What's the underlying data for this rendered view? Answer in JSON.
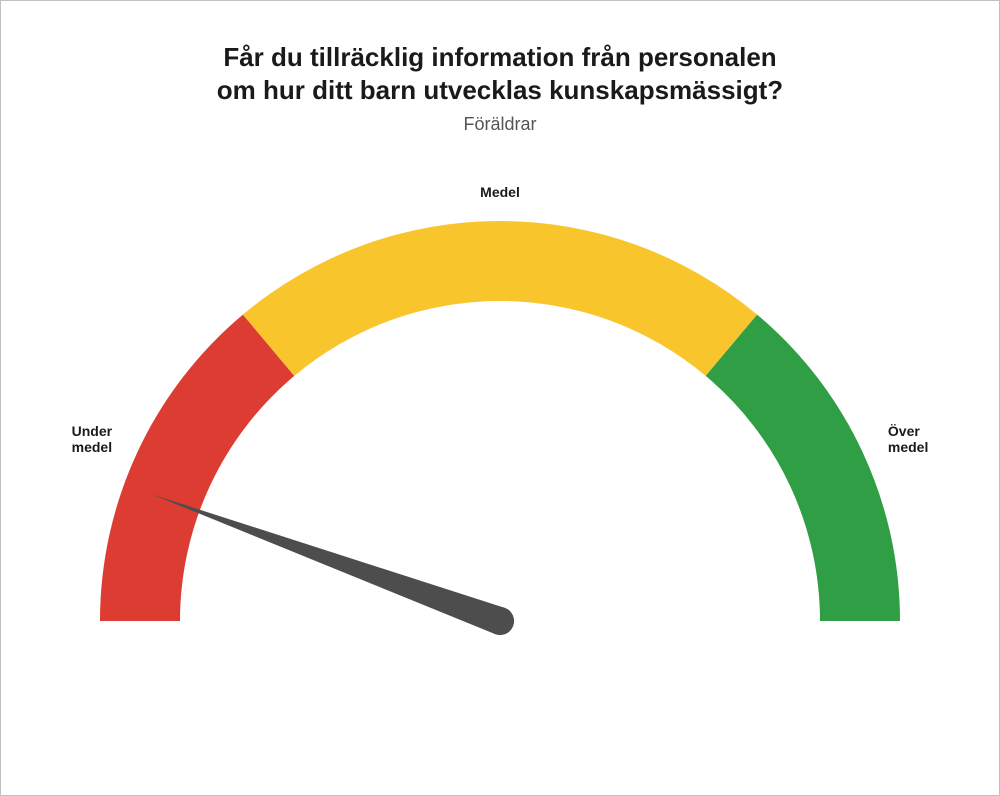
{
  "title_line1": "Får du tillräcklig information från personalen",
  "title_line2": "om hur ditt barn utvecklas kunskapsmässigt?",
  "subtitle": "Föräldrar",
  "gauge": {
    "type": "gauge",
    "segments": [
      {
        "label": "Under medel",
        "color": "#dd3c32",
        "start_deg": 180,
        "end_deg": 130
      },
      {
        "label": "Medel",
        "color": "#f8c52c",
        "start_deg": 130,
        "end_deg": 50
      },
      {
        "label": "Över medel",
        "color": "#2f9e44",
        "start_deg": 50,
        "end_deg": 0
      }
    ],
    "outer_radius": 400,
    "inner_radius": 320,
    "needle": {
      "angle_deg": 160,
      "length": 370,
      "base_half_width": 14,
      "color": "#4d4d4d"
    },
    "background_color": "#ffffff",
    "title_fontsize": 26,
    "subtitle_fontsize": 18,
    "label_fontsize": 14,
    "label_fontweight": 700
  }
}
